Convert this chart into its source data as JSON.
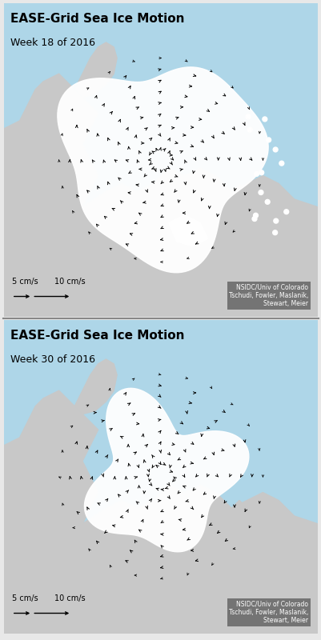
{
  "title1": "EASE-Grid Sea Ice Motion",
  "subtitle1": "Week 18 of 2016",
  "title2": "EASE-Grid Sea Ice Motion",
  "subtitle2": "Week 30 of 2016",
  "title_fontsize": 11,
  "subtitle_fontsize": 9,
  "ocean_color": "#aed6e8",
  "land_color": "#c8c8c8",
  "ice_color": "#ffffff",
  "border_color": "#333333",
  "scale_label1": "5 cm/s",
  "scale_label2": "10 cm/s",
  "credit_text": "NSIDC/Univ of Colorado\nTschudi, Fowler, Maslanik,\nStewart, Meier",
  "credit_bg": "#666666",
  "credit_fg": "#ffffff",
  "fig_bg": "#e8e8e8"
}
